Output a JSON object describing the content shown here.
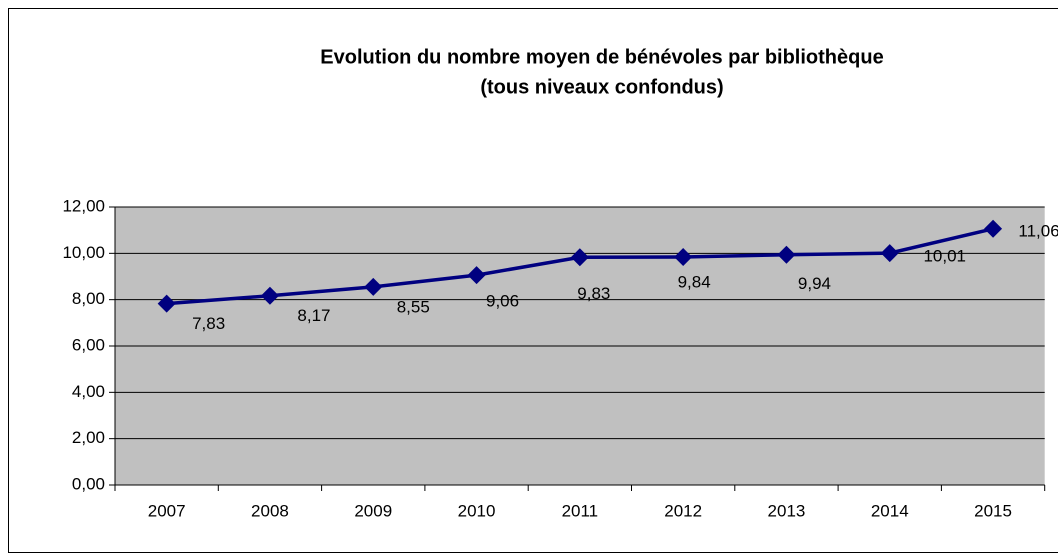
{
  "chart_data": {
    "type": "line",
    "title": [
      "Evolution du nombre moyen de bénévoles par bibliothèque",
      "(tous niveaux confondus)"
    ],
    "categories": [
      "2007",
      "2008",
      "2009",
      "2010",
      "2011",
      "2012",
      "2013",
      "2014",
      "2015"
    ],
    "values": [
      7.83,
      8.17,
      8.55,
      9.06,
      9.83,
      9.84,
      9.94,
      10.01,
      11.06
    ],
    "value_labels": [
      "7,83",
      "8,17",
      "8,55",
      "9,06",
      "9,83",
      "9,84",
      "9,94",
      "10,01",
      "11,06"
    ],
    "color": "#000080",
    "ylim": [
      0,
      12
    ],
    "yticks": [
      {
        "value": 0,
        "label": "0,00"
      },
      {
        "value": 2,
        "label": "2,00"
      },
      {
        "value": 4,
        "label": "4,00"
      },
      {
        "value": 6,
        "label": "6,00"
      },
      {
        "value": 8,
        "label": "8,00"
      },
      {
        "value": 10,
        "label": "10,00"
      },
      {
        "value": 12,
        "label": "12,00"
      }
    ],
    "grid": true
  }
}
